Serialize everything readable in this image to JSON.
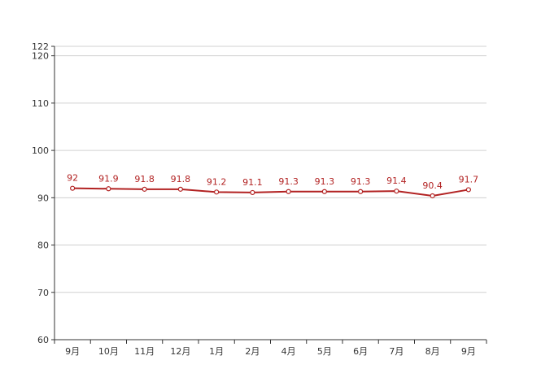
{
  "chart_data": {
    "type": "line",
    "title": "",
    "xlabel": "",
    "ylabel": "",
    "categories": [
      "9月",
      "10月",
      "11月",
      "12月",
      "1月",
      "2月",
      "4月",
      "5月",
      "6月",
      "7月",
      "8月",
      "9月"
    ],
    "series": [
      {
        "values": [
          92,
          91.9,
          91.8,
          91.8,
          91.2,
          91.1,
          91.3,
          91.3,
          91.3,
          91.4,
          90.4,
          91.7
        ],
        "labels": [
          "92",
          "91.9",
          "91.8",
          "91.8",
          "91.2",
          "91.1",
          "91.3",
          "91.3",
          "91.3",
          "91.4",
          "90.4",
          "91.7"
        ],
        "color": "#b22222"
      }
    ],
    "ylim": [
      60,
      122
    ],
    "yticks": [
      60,
      70,
      80,
      90,
      100,
      110,
      120,
      122
    ],
    "grid": true,
    "legend": "none"
  }
}
